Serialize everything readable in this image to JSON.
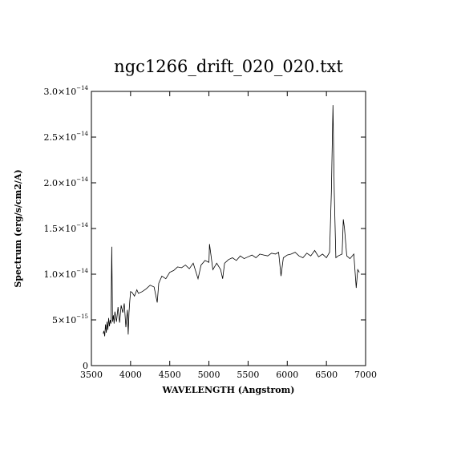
{
  "chart_data": {
    "type": "line",
    "title": "ngc1266_drift_020_020.txt",
    "xlabel": "WAVELENGTH (Angstrom)",
    "ylabel": "Spectrum (erg/s/cm2/A)",
    "xlim": [
      3500,
      7000
    ],
    "ylim": [
      0,
      3e-14
    ],
    "x_ticks": [
      3500,
      4000,
      4500,
      5000,
      5500,
      6000,
      6500,
      7000
    ],
    "x_tick_labels": [
      "3500",
      "4000",
      "4500",
      "5000",
      "5500",
      "6000",
      "6500",
      "7000"
    ],
    "y_ticks": [
      0,
      5e-15,
      1e-14,
      1.5e-14,
      2e-14,
      2.5e-14,
      3e-14
    ],
    "y_tick_labels": [
      {
        "mantissa": "0",
        "exponent": ""
      },
      {
        "mantissa": "5×10",
        "exponent": "−15"
      },
      {
        "mantissa": "1.0×10",
        "exponent": "−14"
      },
      {
        "mantissa": "1.5×10",
        "exponent": "−14"
      },
      {
        "mantissa": "2.0×10",
        "exponent": "−14"
      },
      {
        "mantissa": "2.5×10",
        "exponent": "−14"
      },
      {
        "mantissa": "3.0×10",
        "exponent": "−14"
      }
    ],
    "grid": false,
    "series": [
      {
        "x": [
          3650,
          3660,
          3670,
          3680,
          3690,
          3700,
          3710,
          3720,
          3730,
          3740,
          3750,
          3760,
          3770,
          3780,
          3790,
          3800,
          3820,
          3840,
          3860,
          3880,
          3900,
          3920,
          3940,
          3960,
          3970,
          3980,
          3990,
          4000,
          4020,
          4050,
          4080,
          4100,
          4150,
          4200,
          4250,
          4300,
          4340,
          4360,
          4400,
          4450,
          4500,
          4550,
          4600,
          4650,
          4700,
          4750,
          4800,
          4861,
          4900,
          4950,
          5000,
          5007,
          5050,
          5100,
          5150,
          5175,
          5200,
          5250,
          5300,
          5350,
          5400,
          5450,
          5500,
          5550,
          5600,
          5650,
          5700,
          5750,
          5800,
          5850,
          5890,
          5920,
          5950,
          6000,
          6050,
          6100,
          6150,
          6200,
          6250,
          6300,
          6350,
          6400,
          6450,
          6500,
          6540,
          6563,
          6583,
          6600,
          6620,
          6650,
          6700,
          6716,
          6731,
          6760,
          6800,
          6850,
          6880,
          6900,
          6920
        ],
        "y": [
          3.5e-15,
          3.8e-15,
          3.2e-15,
          4.5e-15,
          3.6e-15,
          4.8e-15,
          3.9e-15,
          5.2e-15,
          4.3e-15,
          5e-15,
          4.6e-15,
          1.3e-14,
          4.8e-15,
          5.5e-15,
          4.6e-15,
          5.9e-15,
          4.8e-15,
          6.4e-15,
          4.7e-15,
          6.6e-15,
          5.8e-15,
          6.8e-15,
          4.2e-15,
          6.1e-15,
          3.4e-15,
          5.8e-15,
          7.1e-15,
          8.1e-15,
          8e-15,
          7.6e-15,
          8.3e-15,
          7.9e-15,
          8.1e-15,
          8.4e-15,
          8.8e-15,
          8.6e-15,
          6.9e-15,
          9e-15,
          9.8e-15,
          9.5e-15,
          1.02e-14,
          1.04e-14,
          1.08e-14,
          1.07e-14,
          1.1e-14,
          1.06e-14,
          1.12e-14,
          9.5e-15,
          1.1e-14,
          1.15e-14,
          1.13e-14,
          1.33e-14,
          1.05e-14,
          1.12e-14,
          1.05e-14,
          9.5e-15,
          1.12e-14,
          1.16e-14,
          1.18e-14,
          1.15e-14,
          1.2e-14,
          1.17e-14,
          1.19e-14,
          1.21e-14,
          1.18e-14,
          1.22e-14,
          1.21e-14,
          1.2e-14,
          1.23e-14,
          1.22e-14,
          1.24e-14,
          9.8e-15,
          1.18e-14,
          1.21e-14,
          1.22e-14,
          1.24e-14,
          1.2e-14,
          1.18e-14,
          1.23e-14,
          1.2e-14,
          1.26e-14,
          1.19e-14,
          1.22e-14,
          1.18e-14,
          1.24e-14,
          1.9e-14,
          2.85e-14,
          1.9e-14,
          1.18e-14,
          1.2e-14,
          1.22e-14,
          1.6e-14,
          1.5e-14,
          1.2e-14,
          1.17e-14,
          1.22e-14,
          8.5e-15,
          1.05e-14,
          1.02e-14
        ]
      }
    ]
  }
}
